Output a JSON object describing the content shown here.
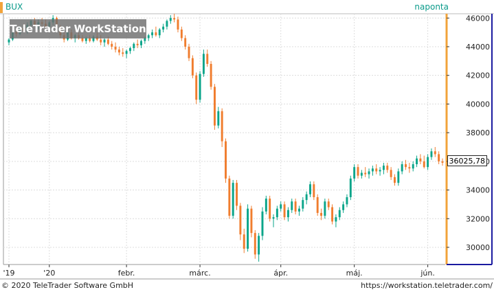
{
  "header": {
    "symbol": "BUX",
    "period": "naponta"
  },
  "watermark": "TeleTrader WorkStation",
  "footer": {
    "copyright": "© 2020 TeleTrader Software GmbH",
    "site": "https://workstation.teletrader.com/"
  },
  "last_price_label": "36025,78",
  "colors": {
    "up": "#0aa58a",
    "down": "#f07d2e",
    "accent": "#f2a33a",
    "axis": "#1a1aa0"
  },
  "chart_data": {
    "type": "candlestick",
    "series_name": "BUX",
    "ylim": [
      28800,
      46300
    ],
    "y_ticks": [
      30000,
      32000,
      34000,
      36000,
      38000,
      40000,
      42000,
      44000,
      46000
    ],
    "y_tick_labels": [
      "30000",
      "32000",
      "34000",
      "36000",
      "38000",
      "40000",
      "42000",
      "44000",
      "46000"
    ],
    "x_ticks": [
      {
        "label": "'19",
        "index": 0
      },
      {
        "label": "'20",
        "index": 11
      },
      {
        "label": "febr.",
        "index": 32
      },
      {
        "label": "márc.",
        "index": 52
      },
      {
        "label": "ápr.",
        "index": 74
      },
      {
        "label": "máj.",
        "index": 94
      },
      {
        "label": "jún.",
        "index": 114
      }
    ],
    "last_price": 36025.78,
    "grid": true,
    "candles": [
      [
        44300,
        44600,
        44100,
        44500
      ],
      [
        44500,
        45100,
        44400,
        45000
      ],
      [
        45000,
        45300,
        44700,
        44900
      ],
      [
        44900,
        45400,
        44800,
        45300
      ],
      [
        45300,
        45600,
        45000,
        45100
      ],
      [
        45100,
        45700,
        44900,
        45500
      ],
      [
        45500,
        45900,
        45300,
        45800
      ],
      [
        45800,
        46000,
        45400,
        45500
      ],
      [
        45500,
        45900,
        45200,
        45700
      ],
      [
        45700,
        46000,
        45400,
        45600
      ],
      [
        45600,
        45900,
        45300,
        45400
      ],
      [
        45400,
        45800,
        45100,
        45700
      ],
      [
        45700,
        46200,
        45500,
        46000
      ],
      [
        46000,
        46100,
        45200,
        45300
      ],
      [
        45300,
        45500,
        44600,
        44800
      ],
      [
        44800,
        45000,
        44300,
        44500
      ],
      [
        44500,
        45100,
        44400,
        45000
      ],
      [
        45000,
        45200,
        44500,
        44600
      ],
      [
        44600,
        44900,
        44300,
        44800
      ],
      [
        44800,
        45000,
        44500,
        44600
      ],
      [
        44600,
        44800,
        44300,
        44400
      ],
      [
        44400,
        44700,
        44200,
        44600
      ],
      [
        44600,
        44800,
        44300,
        44400
      ],
      [
        44400,
        44800,
        44300,
        44700
      ],
      [
        44700,
        45000,
        44400,
        44500
      ],
      [
        44500,
        44800,
        44100,
        44300
      ],
      [
        44300,
        44600,
        44000,
        44500
      ],
      [
        44500,
        44700,
        44100,
        44200
      ],
      [
        44200,
        44400,
        43800,
        44000
      ],
      [
        44000,
        44300,
        43600,
        43800
      ],
      [
        43800,
        44000,
        43400,
        43600
      ],
      [
        43600,
        43900,
        43300,
        43500
      ],
      [
        43500,
        43800,
        43200,
        43700
      ],
      [
        43700,
        44000,
        43500,
        43900
      ],
      [
        43900,
        44300,
        43700,
        44200
      ],
      [
        44200,
        44500,
        43900,
        44100
      ],
      [
        44100,
        44500,
        43900,
        44400
      ],
      [
        44400,
        44700,
        44200,
        44600
      ],
      [
        44600,
        44900,
        44400,
        44800
      ],
      [
        44800,
        45200,
        44600,
        45000
      ],
      [
        45000,
        45400,
        44700,
        44800
      ],
      [
        44800,
        45300,
        44600,
        45200
      ],
      [
        45200,
        45600,
        45000,
        45400
      ],
      [
        45400,
        45900,
        45200,
        45800
      ],
      [
        45800,
        46200,
        45600,
        46000
      ],
      [
        46000,
        46300,
        45700,
        45900
      ],
      [
        45900,
        46100,
        45000,
        45200
      ],
      [
        45200,
        45400,
        44400,
        44600
      ],
      [
        44600,
        44800,
        43800,
        44000
      ],
      [
        44000,
        44200,
        43000,
        43200
      ],
      [
        43200,
        43400,
        41800,
        42000
      ],
      [
        42000,
        42200,
        40000,
        40300
      ],
      [
        40300,
        42300,
        40100,
        42100
      ],
      [
        42100,
        43800,
        41900,
        43500
      ],
      [
        43500,
        43800,
        42600,
        42800
      ],
      [
        42800,
        43000,
        41000,
        41200
      ],
      [
        41200,
        41400,
        38200,
        38500
      ],
      [
        38500,
        39800,
        38300,
        39500
      ],
      [
        39500,
        39700,
        37000,
        37400
      ],
      [
        37400,
        37600,
        34500,
        34800
      ],
      [
        34800,
        35000,
        32000,
        32200
      ],
      [
        32200,
        34700,
        32000,
        34500
      ],
      [
        34500,
        34700,
        32600,
        32900
      ],
      [
        32900,
        33100,
        30500,
        30900
      ],
      [
        30900,
        31300,
        29600,
        29900
      ],
      [
        29900,
        33000,
        29700,
        32700
      ],
      [
        32700,
        32900,
        30700,
        31000
      ],
      [
        31000,
        31200,
        29200,
        29500
      ],
      [
        29500,
        31000,
        29000,
        30800
      ],
      [
        30800,
        32800,
        30500,
        32500
      ],
      [
        32500,
        33600,
        32300,
        33400
      ],
      [
        33400,
        33600,
        31800,
        32000
      ],
      [
        32000,
        32300,
        31400,
        32100
      ],
      [
        32100,
        32900,
        31900,
        32700
      ],
      [
        32700,
        33200,
        32500,
        33000
      ],
      [
        33000,
        33200,
        31900,
        32100
      ],
      [
        32100,
        32800,
        31800,
        32600
      ],
      [
        32600,
        33400,
        32400,
        33200
      ],
      [
        33200,
        33400,
        32300,
        32500
      ],
      [
        32500,
        32900,
        32200,
        32700
      ],
      [
        32700,
        33500,
        32500,
        33300
      ],
      [
        33300,
        33900,
        33000,
        33700
      ],
      [
        33700,
        34600,
        33500,
        34400
      ],
      [
        34400,
        34600,
        33300,
        33500
      ],
      [
        33500,
        33700,
        32200,
        32400
      ],
      [
        32400,
        32700,
        31900,
        32200
      ],
      [
        32200,
        33400,
        32000,
        33200
      ],
      [
        33200,
        33400,
        32600,
        32800
      ],
      [
        32800,
        33000,
        31600,
        31800
      ],
      [
        31800,
        32300,
        31400,
        32100
      ],
      [
        32100,
        32800,
        31900,
        32600
      ],
      [
        32600,
        33200,
        32400,
        33000
      ],
      [
        33000,
        33700,
        32800,
        33500
      ],
      [
        33500,
        35000,
        33300,
        34800
      ],
      [
        34800,
        35800,
        34600,
        35600
      ],
      [
        35600,
        35800,
        34800,
        35000
      ],
      [
        35000,
        35400,
        34800,
        35200
      ],
      [
        35200,
        35600,
        34900,
        35100
      ],
      [
        35100,
        35500,
        34800,
        35300
      ],
      [
        35300,
        35700,
        35000,
        35500
      ],
      [
        35500,
        35800,
        35100,
        35300
      ],
      [
        35300,
        35600,
        35000,
        35400
      ],
      [
        35400,
        35900,
        35100,
        35700
      ],
      [
        35700,
        35900,
        35200,
        35400
      ],
      [
        35400,
        35600,
        34700,
        34900
      ],
      [
        34900,
        35100,
        34300,
        34500
      ],
      [
        34500,
        35500,
        34300,
        35300
      ],
      [
        35300,
        36000,
        35100,
        35800
      ],
      [
        35800,
        36100,
        35400,
        35600
      ],
      [
        35600,
        35900,
        35200,
        35500
      ],
      [
        35500,
        36000,
        35300,
        35800
      ],
      [
        35800,
        36400,
        35600,
        36200
      ],
      [
        36200,
        36500,
        35800,
        36000
      ],
      [
        36000,
        36400,
        35500,
        35600
      ],
      [
        35600,
        36500,
        35400,
        36300
      ],
      [
        36300,
        36900,
        36100,
        36700
      ],
      [
        36700,
        37000,
        36300,
        36500
      ],
      [
        36500,
        36700,
        35800,
        36000
      ],
      [
        36000,
        36200,
        35700,
        35900
      ]
    ]
  }
}
